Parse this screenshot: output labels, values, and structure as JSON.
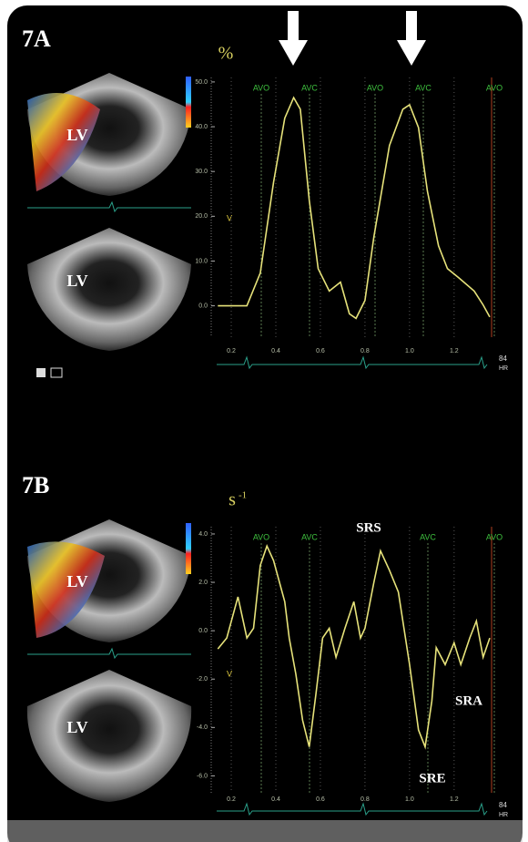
{
  "chart_data": [
    {
      "type": "line",
      "title": "7A",
      "y_label": "%",
      "image_labels": [
        "LV",
        "LV"
      ],
      "marker": "V",
      "hr": [
        "84",
        "HR"
      ],
      "annotations": [
        "AVO",
        "AVC",
        "AVO",
        "AVC",
        "AVO"
      ],
      "color": "#e6e27a",
      "x": [
        0.14,
        0.27,
        0.33,
        0.39,
        0.44,
        0.48,
        0.51,
        0.55,
        0.59,
        0.64,
        0.69,
        0.73,
        0.76,
        0.8,
        0.84,
        0.91,
        0.97,
        1.0,
        1.04,
        1.08,
        1.13,
        1.17,
        1.22,
        1.29,
        1.33,
        1.36
      ],
      "values": [
        0,
        0,
        7.3,
        27.6,
        41.9,
        46.5,
        43.9,
        23.6,
        8.3,
        3.3,
        5.3,
        -1.8,
        -2.8,
        1.2,
        15.4,
        35.8,
        43.9,
        44.9,
        39.8,
        25.6,
        13.4,
        8.3,
        6.3,
        3.3,
        0.2,
        -2.5
      ],
      "xlim": [
        0.11,
        1.36
      ],
      "ylim": [
        -7,
        51
      ],
      "xticks": [
        0.2,
        0.4,
        0.6,
        0.8,
        {
          "value": 1,
          "label": "1.0"
        },
        1.2
      ],
      "yticks": [
        {
          "value": 0,
          "label": "0.0"
        },
        {
          "value": 10,
          "label": "10.0"
        },
        {
          "value": 20,
          "label": "20.0"
        },
        {
          "value": 30,
          "label": "30.0"
        },
        {
          "value": 40,
          "label": "40.0"
        },
        {
          "value": 50,
          "label": "50.0"
        }
      ]
    },
    {
      "type": "line",
      "title": "7B",
      "y_label": "s",
      "y_label_sup": "-1",
      "image_labels": [
        "LV",
        "LV"
      ],
      "marker": "V",
      "hr": [
        "84",
        "HR"
      ],
      "annotations": [
        "AVO",
        "AVC",
        "SRS",
        "AVC",
        "AVO",
        "SRA",
        "SRE"
      ],
      "color": "#e6e27a",
      "x": [
        0.14,
        0.18,
        0.23,
        0.27,
        0.3,
        0.33,
        0.36,
        0.39,
        0.44,
        0.46,
        0.49,
        0.52,
        0.55,
        0.58,
        0.61,
        0.64,
        0.67,
        0.71,
        0.75,
        0.78,
        0.8,
        0.84,
        0.87,
        0.91,
        0.95,
        1.0,
        1.04,
        1.07,
        1.1,
        1.12,
        1.16,
        1.2,
        1.23,
        1.27,
        1.3,
        1.33,
        1.36
      ],
      "values": [
        -0.75,
        -0.3,
        1.4,
        -0.3,
        0.1,
        2.7,
        3.5,
        2.9,
        1.2,
        -0.3,
        -1.8,
        -3.7,
        -4.8,
        -2.6,
        -0.3,
        0.1,
        -1.1,
        0.1,
        1.2,
        -0.3,
        0.1,
        2.0,
        3.3,
        2.5,
        1.6,
        -1.4,
        -4.1,
        -4.8,
        -2.9,
        -0.7,
        -1.4,
        -0.5,
        -1.4,
        -0.3,
        0.4,
        -1.1,
        -0.3
      ],
      "xlim": [
        0.11,
        1.36
      ],
      "ylim": [
        -6.7,
        4.3
      ],
      "xticks": [
        0.2,
        0.4,
        0.6,
        0.8,
        {
          "value": 1,
          "label": "1.0"
        },
        1.2
      ],
      "yticks": [
        {
          "value": -6,
          "label": "-6.0"
        },
        {
          "value": -4,
          "label": "-4.0"
        },
        {
          "value": -2,
          "label": "-2.0"
        },
        {
          "value": 0,
          "label": "0.0"
        },
        {
          "value": 2,
          "label": "2.0"
        },
        {
          "value": 4,
          "label": "4.0"
        }
      ]
    }
  ]
}
